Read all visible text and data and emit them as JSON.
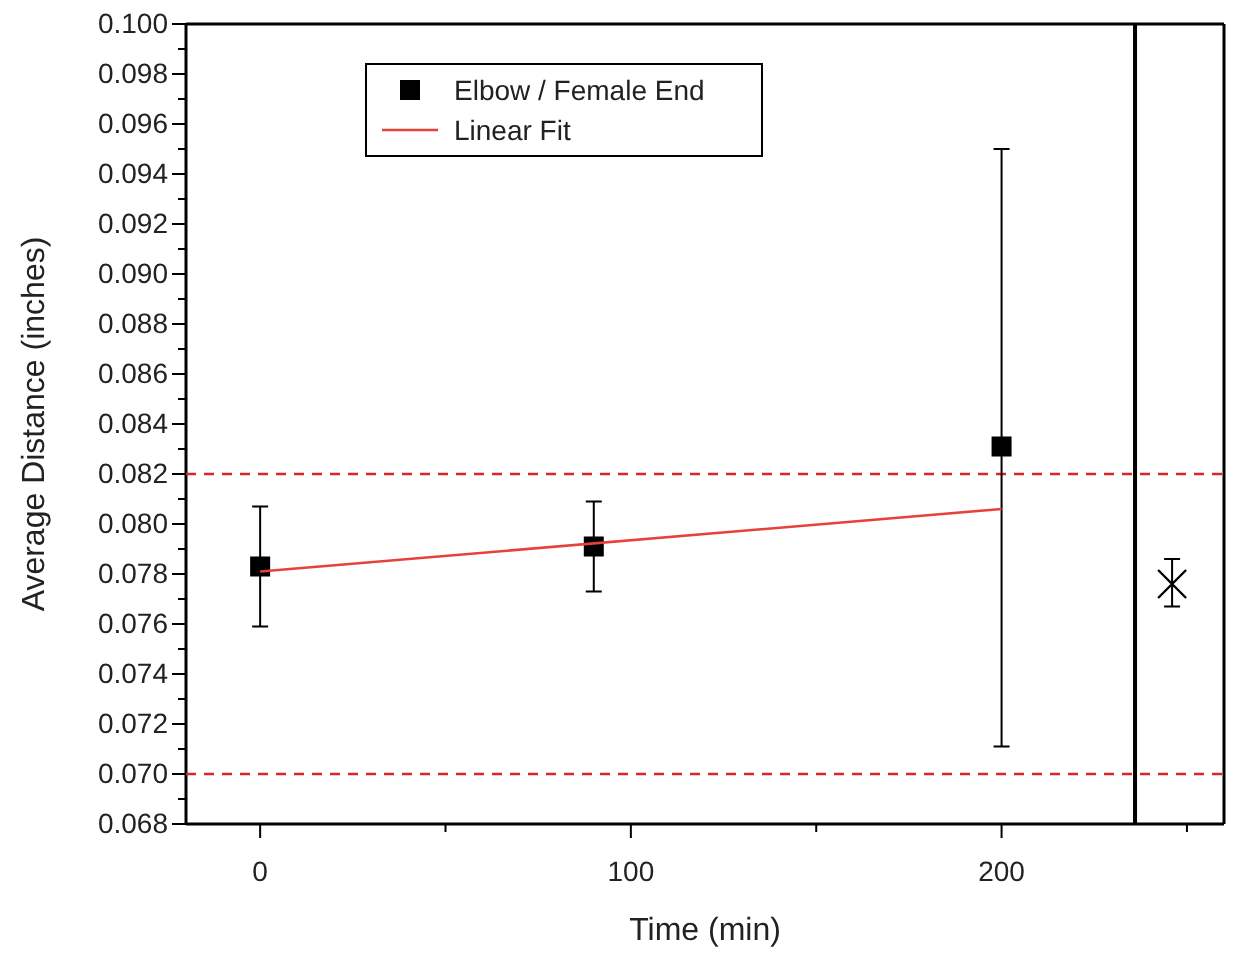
{
  "chart_data": {
    "type": "scatter",
    "xlabel": "Time (min)",
    "ylabel": "Average Distance (inches)",
    "xlim": [
      -20,
      260
    ],
    "xticks": [
      0,
      {
        "value": 50,
        "label": null
      },
      100,
      {
        "value": 150,
        "label": null
      },
      200,
      {
        "value": 250,
        "label": null
      }
    ],
    "ylim": [
      0.068,
      0.1
    ],
    "yticks": [
      {
        "value": 0.068,
        "label": "0.068"
      },
      {
        "value": 0.069,
        "label": null
      },
      {
        "value": 0.07,
        "label": "0.070"
      },
      {
        "value": 0.071,
        "label": null
      },
      {
        "value": 0.072,
        "label": "0.072"
      },
      {
        "value": 0.073,
        "label": null
      },
      {
        "value": 0.074,
        "label": "0.074"
      },
      {
        "value": 0.075,
        "label": null
      },
      {
        "value": 0.076,
        "label": "0.076"
      },
      {
        "value": 0.077,
        "label": null
      },
      {
        "value": 0.078,
        "label": "0.078"
      },
      {
        "value": 0.079,
        "label": null
      },
      {
        "value": 0.08,
        "label": "0.080"
      },
      {
        "value": 0.081,
        "label": null
      },
      {
        "value": 0.082,
        "label": "0.082"
      },
      {
        "value": 0.083,
        "label": null
      },
      {
        "value": 0.084,
        "label": "0.084"
      },
      {
        "value": 0.085,
        "label": null
      },
      {
        "value": 0.086,
        "label": "0.086"
      },
      {
        "value": 0.087,
        "label": null
      },
      {
        "value": 0.088,
        "label": "0.088"
      },
      {
        "value": 0.089,
        "label": null
      },
      {
        "value": 0.09,
        "label": "0.090"
      },
      {
        "value": 0.091,
        "label": null
      },
      {
        "value": 0.092,
        "label": "0.092"
      },
      {
        "value": 0.093,
        "label": null
      },
      {
        "value": 0.094,
        "label": "0.094"
      },
      {
        "value": 0.095,
        "label": null
      },
      {
        "value": 0.096,
        "label": "0.096"
      },
      {
        "value": 0.097,
        "label": null
      },
      {
        "value": 0.098,
        "label": "0.098"
      },
      {
        "value": 0.099,
        "label": null
      },
      {
        "value": 0.1,
        "label": "0.100"
      }
    ],
    "grid": false,
    "legend": "top left",
    "series": [
      {
        "name": "Elbow / Female End",
        "marker": "square",
        "color": "#000000",
        "x": [
          0,
          90,
          200
        ],
        "values": [
          0.0783,
          0.0791,
          0.0831
        ],
        "errors": [
          [
            0.0759,
            0.0807
          ],
          [
            0.0773,
            0.0809
          ],
          [
            0.0711,
            0.095
          ]
        ]
      },
      {
        "name": "Linear Fit",
        "type": "line",
        "line_style": "solid",
        "color": "#e8413c",
        "x": [
          0,
          200
        ],
        "values": [
          0.0781,
          0.0806
        ]
      },
      {
        "marker": "cross",
        "color": "#000000",
        "x": [
          246
        ],
        "values": [
          0.0776
        ],
        "errors": [
          [
            0.0767,
            0.0786
          ]
        ]
      }
    ],
    "ref_lines": [
      {
        "axis": "y",
        "value": 0.082,
        "color": "#d62728",
        "line_style": "dashed"
      },
      {
        "axis": "y",
        "value": 0.07,
        "color": "#d62728",
        "line_style": "dashed"
      },
      {
        "axis": "x",
        "value": 236,
        "color": "#000000",
        "line_style": "solid"
      }
    ]
  }
}
